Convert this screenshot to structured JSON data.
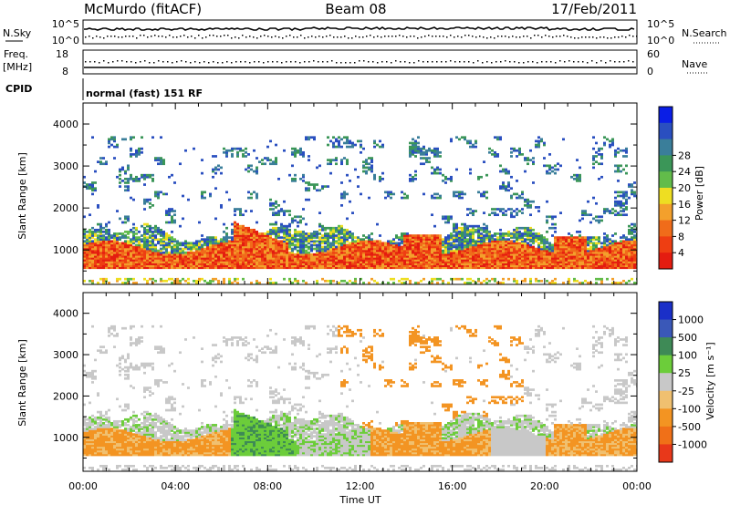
{
  "header": {
    "radar": "McMurdo (fitACF)",
    "beam": "Beam 08",
    "date": "17/Feb/2011"
  },
  "status_panels": {
    "nsky": {
      "label": "N.Sky",
      "right_label": "N.Search",
      "left_ticks": [
        "10^5",
        "10^0"
      ],
      "right_ticks": [
        "10^5",
        "10^0"
      ]
    },
    "freq": {
      "label_line1": "Freq.",
      "label_line2": "[MHz]",
      "right_label": "Nave",
      "left_ticks": [
        "18",
        "8"
      ],
      "right_ticks": [
        "60",
        "0"
      ]
    },
    "cpid": {
      "label": "CPID",
      "text": "normal (fast) 151 RF"
    }
  },
  "chart_data": [
    {
      "type": "heatmap",
      "title": "Power",
      "xlabel": "",
      "ylabel": "Slant Range [km]",
      "x_ticks": [
        "00:00",
        "04:00",
        "08:00",
        "12:00",
        "16:00",
        "20:00",
        "00:00"
      ],
      "xlim_hours": [
        0,
        24
      ],
      "ylim": [
        180,
        4500
      ],
      "y_ticks": [
        1000,
        2000,
        3000,
        4000
      ],
      "colorbar": {
        "label": "Power [dB]",
        "tick_labels": [
          "4",
          "8",
          "12",
          "16",
          "20",
          "24",
          "28"
        ],
        "colors": [
          "#0a1ee6",
          "#2a4fc0",
          "#3a7e9a",
          "#3b9658",
          "#62bc4a",
          "#eede22",
          "#f3a02c",
          "#f06c1a",
          "#ee3e12",
          "#e41c10"
        ]
      },
      "main_band_km": [
        600,
        1500
      ],
      "strong_echo_km": [
        650,
        1100
      ]
    },
    {
      "type": "heatmap",
      "title": "Velocity",
      "xlabel": "Time UT",
      "ylabel": "Slant Range [km]",
      "x_ticks": [
        "00:00",
        "04:00",
        "08:00",
        "12:00",
        "16:00",
        "20:00",
        "00:00"
      ],
      "xlim_hours": [
        0,
        24
      ],
      "ylim": [
        180,
        4500
      ],
      "y_ticks": [
        1000,
        2000,
        3000,
        4000
      ],
      "colorbar": {
        "label": "Velocity [m s⁻¹]",
        "tick_labels": [
          "1000",
          "500",
          "100",
          "25",
          "-25",
          "-100",
          "-500",
          "-1000"
        ],
        "colors": [
          "#1a2fc8",
          "#3a58b8",
          "#3e8a56",
          "#6ccd3a",
          "#c8c8c8",
          "#f0c070",
          "#f39422",
          "#f07018",
          "#e8381a"
        ]
      }
    }
  ]
}
